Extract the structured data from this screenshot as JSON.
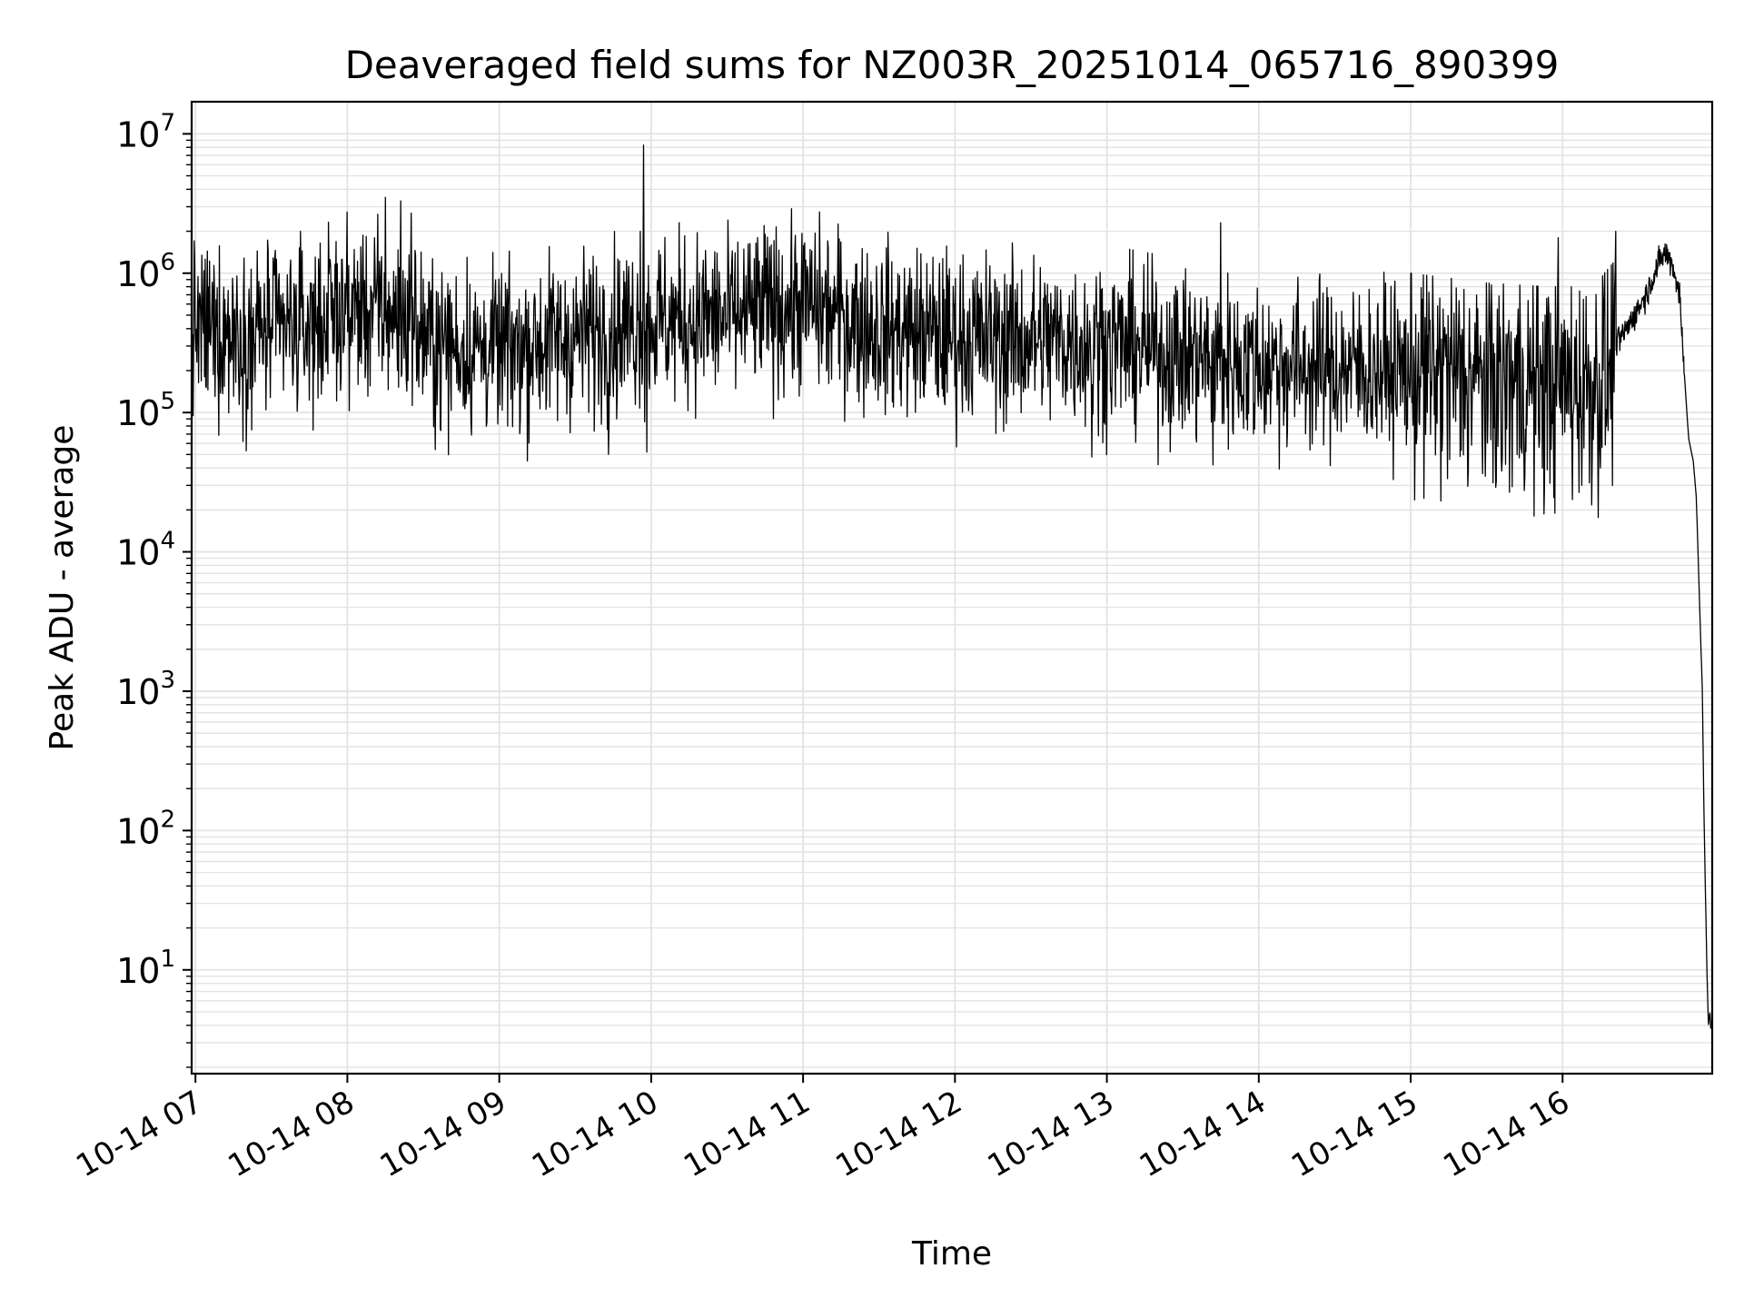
{
  "chart_data": {
    "type": "line",
    "title": "Deaveraged field sums for NZ003R_20251014_065716_890399",
    "xlabel": "Time",
    "ylabel": "Peak ADU - average",
    "yscale": "log",
    "ylim": [
      1.8,
      17000000
    ],
    "xlim_hours": [
      6.975,
      16.985
    ],
    "grid": true,
    "line_color": "#000000",
    "y_ticks": [
      {
        "base": "10",
        "exp": "1",
        "value": 10
      },
      {
        "base": "10",
        "exp": "2",
        "value": 100
      },
      {
        "base": "10",
        "exp": "3",
        "value": 1000
      },
      {
        "base": "10",
        "exp": "4",
        "value": 10000
      },
      {
        "base": "10",
        "exp": "5",
        "value": 100000
      },
      {
        "base": "10",
        "exp": "6",
        "value": 1000000
      },
      {
        "base": "10",
        "exp": "7",
        "value": 10000000
      }
    ],
    "x_ticks": [
      {
        "label": "10-14 07",
        "hour": 7
      },
      {
        "label": "10-14 08",
        "hour": 8
      },
      {
        "label": "10-14 09",
        "hour": 9
      },
      {
        "label": "10-14 10",
        "hour": 10
      },
      {
        "label": "10-14 11",
        "hour": 11
      },
      {
        "label": "10-14 12",
        "hour": 12
      },
      {
        "label": "10-14 13",
        "hour": 13
      },
      {
        "label": "10-14 14",
        "hour": 14
      },
      {
        "label": "10-14 15",
        "hour": 15
      },
      {
        "label": "10-14 16",
        "hour": 16
      }
    ],
    "series": [
      {
        "name": "deaveraged field sum",
        "envelope": {
          "x": [
            6.97,
            7.3,
            7.7,
            8.0,
            8.3,
            8.6,
            9.0,
            9.5,
            10.0,
            10.5,
            11.0,
            11.5,
            12.0,
            12.5,
            13.0,
            13.5,
            14.0,
            14.5,
            15.0,
            15.5,
            15.9,
            16.2,
            16.35
          ],
          "y": [
            400000,
            380000,
            400000,
            550000,
            520000,
            300000,
            280000,
            350000,
            450000,
            480000,
            600000,
            400000,
            350000,
            330000,
            320000,
            250000,
            220000,
            210000,
            200000,
            170000,
            160000,
            160000,
            250000
          ]
        },
        "peaks": [
          {
            "x": 9.95,
            "y": 8300000
          },
          {
            "x": 8.25,
            "y": 3500000
          },
          {
            "x": 8.35,
            "y": 3300000
          },
          {
            "x": 8.42,
            "y": 2700000
          },
          {
            "x": 13.75,
            "y": 2300000
          },
          {
            "x": 9.93,
            "y": 2000000
          },
          {
            "x": 10.75,
            "y": 1900000
          },
          {
            "x": 16.58,
            "y": 2000000
          },
          {
            "x": 16.67,
            "y": 2000000
          },
          {
            "x": 15.97,
            "y": 1800000
          }
        ],
        "dips": [
          {
            "x": 9.72,
            "y": 50000
          },
          {
            "x": 9.97,
            "y": 52000
          },
          {
            "x": 12.9,
            "y": 48000
          },
          {
            "x": 13.7,
            "y": 42000
          },
          {
            "x": 15.6,
            "y": 38000
          },
          {
            "x": 16.25,
            "y": 40000
          },
          {
            "x": 7.37,
            "y": 75000
          }
        ],
        "tail": {
          "x": [
            16.35,
            16.45,
            16.55,
            16.62,
            16.67,
            16.72,
            16.77,
            16.8,
            16.83,
            16.86,
            16.88,
            16.9,
            16.92,
            16.93,
            16.95,
            16.96,
            16.97,
            16.975,
            16.985
          ],
          "y": [
            300000,
            450000,
            700000,
            1100000,
            1400000,
            1200000,
            700000,
            200000,
            65000,
            45000,
            25000,
            5000,
            1000,
            150,
            10,
            4,
            5,
            3.8,
            4.5
          ]
        }
      }
    ]
  }
}
